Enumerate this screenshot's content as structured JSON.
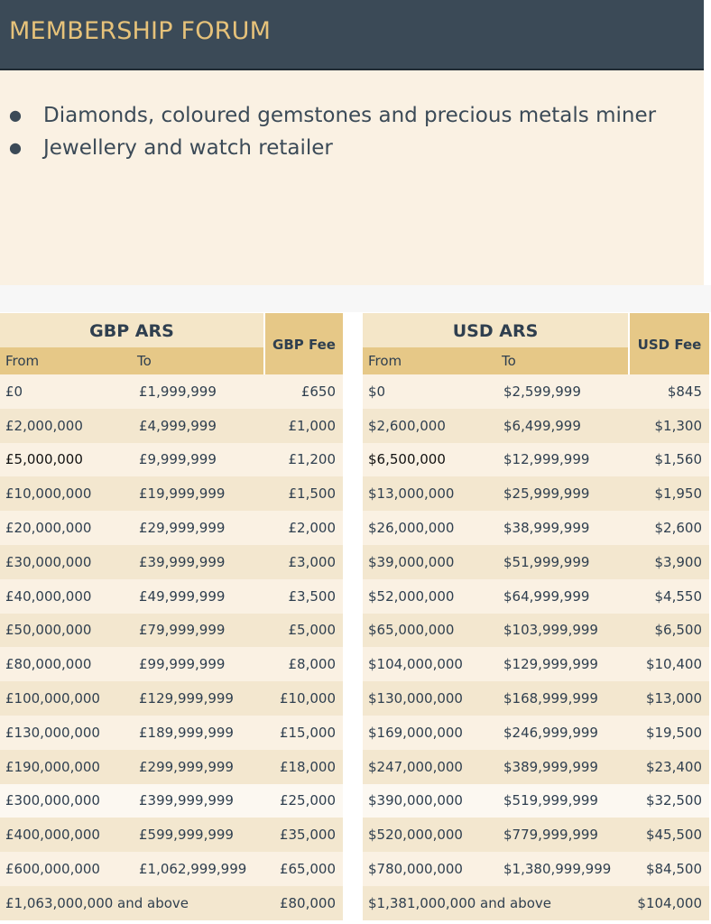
{
  "header": {
    "title": "MEMBERSHIP FORUM"
  },
  "intro": {
    "bullets": [
      "Diamonds, coloured gemstones and precious metals miner",
      "Jewellery and watch retailer"
    ]
  },
  "gbp": {
    "title": "GBP ARS",
    "fee_header": "GBP Fee",
    "from_header": "From",
    "to_header": "To",
    "rows": [
      {
        "from": "£0",
        "to": "£1,999,999",
        "fee": "£650"
      },
      {
        "from": "£2,000,000",
        "to": "£4,999,999",
        "fee": "£1,000"
      },
      {
        "from": "£5,000,000",
        "to": "£9,999,999",
        "fee": "£1,200"
      },
      {
        "from": "£10,000,000",
        "to": "£19,999,999",
        "fee": "£1,500"
      },
      {
        "from": "£20,000,000",
        "to": "£29,999,999",
        "fee": "£2,000"
      },
      {
        "from": "£30,000,000",
        "to": "£39,999,999",
        "fee": "£3,000"
      },
      {
        "from": "£40,000,000",
        "to": "£49,999,999",
        "fee": "£3,500"
      },
      {
        "from": "£50,000,000",
        "to": "£79,999,999",
        "fee": "£5,000"
      },
      {
        "from": "£80,000,000",
        "to": "£99,999,999",
        "fee": "£8,000"
      },
      {
        "from": "£100,000,000",
        "to": "£129,999,999",
        "fee": "£10,000"
      },
      {
        "from": "£130,000,000",
        "to": "£189,999,999",
        "fee": "£15,000"
      },
      {
        "from": "£190,000,000",
        "to": "£299,999,999",
        "fee": "£18,000"
      },
      {
        "from": "£300,000,000",
        "to": "£399,999,999",
        "fee": "£25,000"
      },
      {
        "from": "£400,000,000",
        "to": "£599,999,999",
        "fee": "£35,000"
      },
      {
        "from": "£600,000,000",
        "to": "£1,062,999,999",
        "fee": "£65,000"
      },
      {
        "from": "£1,063,000,000 and above",
        "to": "",
        "fee": "£80,000"
      }
    ]
  },
  "usd": {
    "title": "USD ARS",
    "fee_header": "USD Fee",
    "from_header": "From",
    "to_header": "To",
    "rows": [
      {
        "from": "$0",
        "to": "$2,599,999",
        "fee": "$845"
      },
      {
        "from": "$2,600,000",
        "to": "$6,499,999",
        "fee": "$1,300"
      },
      {
        "from": "$6,500,000",
        "to": "$12,999,999",
        "fee": "$1,560"
      },
      {
        "from": "$13,000,000",
        "to": "$25,999,999",
        "fee": "$1,950"
      },
      {
        "from": "$26,000,000",
        "to": "$38,999,999",
        "fee": "$2,600"
      },
      {
        "from": "$39,000,000",
        "to": "$51,999,999",
        "fee": "$3,900"
      },
      {
        "from": "$52,000,000",
        "to": "$64,999,999",
        "fee": "$4,550"
      },
      {
        "from": "$65,000,000",
        "to": "$103,999,999",
        "fee": "$6,500"
      },
      {
        "from": "$104,000,000",
        "to": "$129,999,999",
        "fee": "$10,400"
      },
      {
        "from": "$130,000,000",
        "to": "$168,999,999",
        "fee": "$13,000"
      },
      {
        "from": "$169,000,000",
        "to": "$246,999,999",
        "fee": "$19,500"
      },
      {
        "from": "$247,000,000",
        "to": "$389,999,999",
        "fee": "$23,400"
      },
      {
        "from": "$390,000,000",
        "to": "$519,999,999",
        "fee": "$32,500"
      },
      {
        "from": "$520,000,000",
        "to": "$779,999,999",
        "fee": "$45,500"
      },
      {
        "from": "$780,000,000",
        "to": "$1,380,999,999",
        "fee": "$84,500"
      },
      {
        "from": "$1,381,000,000 and above",
        "to": "",
        "fee": "$104,000"
      }
    ]
  }
}
